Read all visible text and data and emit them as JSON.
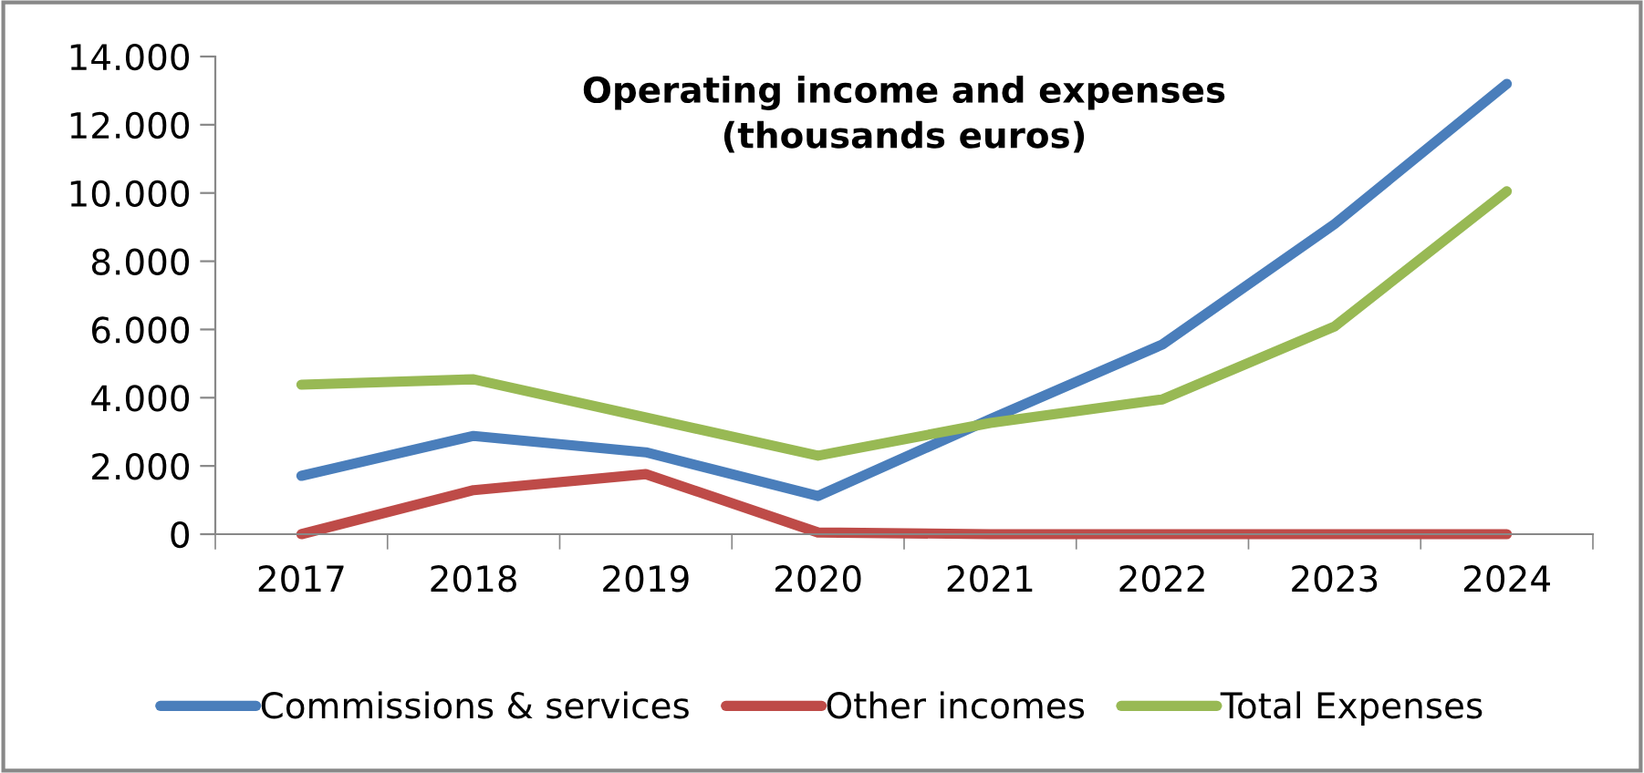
{
  "chart_data": {
    "type": "line",
    "title": "Operating income and expenses\n(thousands euros)",
    "categories": [
      "2017",
      "2018",
      "2019",
      "2020",
      "2021",
      "2022",
      "2023",
      "2024"
    ],
    "series": [
      {
        "name": "Commissions & services",
        "color": "#4a7ebb",
        "values": [
          1710,
          2880,
          2400,
          1120,
          3370,
          5560,
          9090,
          13200
        ]
      },
      {
        "name": "Other incomes",
        "color": "#be4b48",
        "values": [
          0,
          1290,
          1760,
          50,
          0,
          0,
          0,
          0
        ]
      },
      {
        "name": "Total Expenses",
        "color": "#98b954",
        "values": [
          4380,
          4540,
          3420,
          2300,
          3260,
          3950,
          6090,
          10050
        ]
      }
    ],
    "ylim": [
      0,
      14000
    ],
    "yticks": [
      0,
      {
        "value": 2000,
        "label": "2.000"
      },
      {
        "value": 4000,
        "label": "4.000"
      },
      {
        "value": 6000,
        "label": "6.000"
      },
      {
        "value": 8000,
        "label": "8.000"
      },
      {
        "value": 10000,
        "label": "10.000"
      },
      {
        "value": 12000,
        "label": "12.000"
      },
      {
        "value": 14000,
        "label": "14.000"
      }
    ],
    "grid": false,
    "legend": "bottom",
    "marker": "none",
    "line_style": "solid"
  }
}
